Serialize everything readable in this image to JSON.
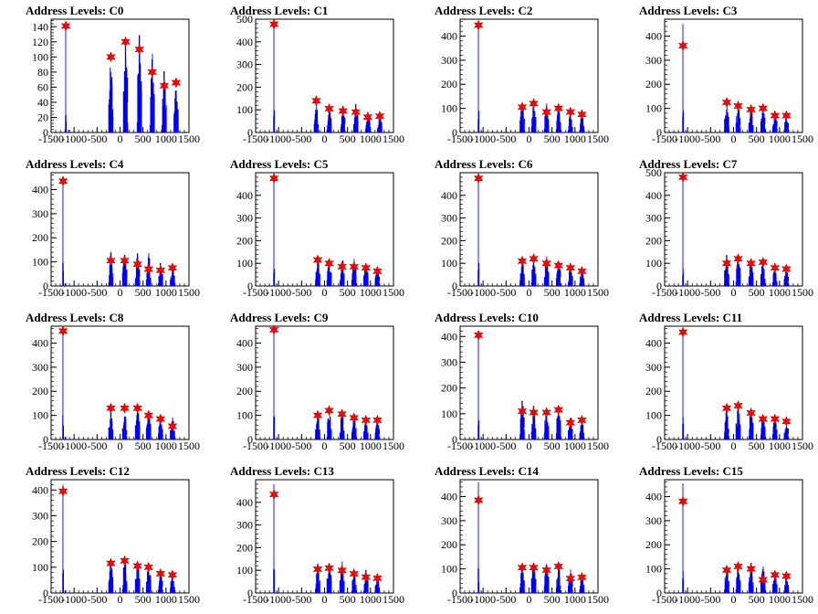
{
  "colors": {
    "background": "#ffffff",
    "histogram": "#0000ff",
    "peak_marker": "#ff0000",
    "axis": "#000000"
  },
  "chart_data": [
    {
      "type": "bar",
      "title": "Address Levels: C0",
      "xlim": [
        -1500,
        1500
      ],
      "ylim": [
        0,
        150
      ],
      "yticks": [
        0,
        20,
        40,
        60,
        80,
        100,
        120,
        140
      ],
      "xticks": [
        -1500,
        -1000,
        -500,
        0,
        500,
        1000,
        1500
      ],
      "peaks": [
        {
          "x": -1180,
          "height": 145,
          "marker": 141
        },
        {
          "x": -200,
          "height": 110,
          "marker": 100
        },
        {
          "x": 120,
          "height": 135,
          "marker": 120
        },
        {
          "x": 420,
          "height": 148,
          "marker": 110
        },
        {
          "x": 700,
          "height": 118,
          "marker": 80
        },
        {
          "x": 960,
          "height": 95,
          "marker": 62
        },
        {
          "x": 1220,
          "height": 70,
          "marker": 66
        }
      ]
    },
    {
      "type": "bar",
      "title": "Address Levels: C1",
      "xlim": [
        -1500,
        1500
      ],
      "ylim": [
        0,
        500
      ],
      "yticks": [
        0,
        100,
        200,
        300,
        400,
        500
      ],
      "xticks": [
        -1500,
        -1000,
        -500,
        0,
        500,
        1000,
        1500
      ],
      "peaks": [
        {
          "x": -1100,
          "height": 480,
          "marker": 478
        },
        {
          "x": -180,
          "height": 140,
          "marker": 140
        },
        {
          "x": 100,
          "height": 130,
          "marker": 105
        },
        {
          "x": 400,
          "height": 125,
          "marker": 95
        },
        {
          "x": 680,
          "height": 140,
          "marker": 90
        },
        {
          "x": 940,
          "height": 105,
          "marker": 68
        },
        {
          "x": 1200,
          "height": 85,
          "marker": 72
        }
      ]
    },
    {
      "type": "bar",
      "title": "Address Levels: C2",
      "xlim": [
        -1500,
        1500
      ],
      "ylim": [
        0,
        470
      ],
      "yticks": [
        0,
        100,
        200,
        300,
        400
      ],
      "xticks": [
        -1500,
        -1000,
        -500,
        0,
        500,
        1000,
        1500
      ],
      "peaks": [
        {
          "x": -1100,
          "height": 450,
          "marker": 445
        },
        {
          "x": -150,
          "height": 135,
          "marker": 105
        },
        {
          "x": 100,
          "height": 150,
          "marker": 120
        },
        {
          "x": 380,
          "height": 130,
          "marker": 85
        },
        {
          "x": 640,
          "height": 135,
          "marker": 100
        },
        {
          "x": 900,
          "height": 110,
          "marker": 85
        },
        {
          "x": 1150,
          "height": 90,
          "marker": 75
        }
      ]
    },
    {
      "type": "bar",
      "title": "Address Levels: C3",
      "xlim": [
        -1500,
        1500
      ],
      "ylim": [
        0,
        470
      ],
      "yticks": [
        0,
        100,
        200,
        300,
        400
      ],
      "xticks": [
        -1500,
        -1000,
        -500,
        0,
        500,
        1000,
        1500
      ],
      "peaks": [
        {
          "x": -1100,
          "height": 450,
          "marker": 360
        },
        {
          "x": -150,
          "height": 135,
          "marker": 125
        },
        {
          "x": 100,
          "height": 125,
          "marker": 110
        },
        {
          "x": 380,
          "height": 125,
          "marker": 95
        },
        {
          "x": 640,
          "height": 115,
          "marker": 100
        },
        {
          "x": 900,
          "height": 95,
          "marker": 70
        },
        {
          "x": 1150,
          "height": 80,
          "marker": 70
        }
      ]
    },
    {
      "type": "bar",
      "title": "Address Levels: C4",
      "xlim": [
        -1500,
        1500
      ],
      "ylim": [
        0,
        470
      ],
      "yticks": [
        0,
        100,
        200,
        300,
        400
      ],
      "xticks": [
        -1500,
        -1000,
        -500,
        0,
        500,
        1000,
        1500
      ],
      "peaks": [
        {
          "x": -1240,
          "height": 440,
          "marker": 435
        },
        {
          "x": -200,
          "height": 160,
          "marker": 105
        },
        {
          "x": 100,
          "height": 180,
          "marker": 105
        },
        {
          "x": 380,
          "height": 165,
          "marker": 90
        },
        {
          "x": 620,
          "height": 150,
          "marker": 70
        },
        {
          "x": 880,
          "height": 105,
          "marker": 65
        },
        {
          "x": 1140,
          "height": 85,
          "marker": 75
        }
      ]
    },
    {
      "type": "bar",
      "title": "Address Levels: C5",
      "xlim": [
        -1500,
        1500
      ],
      "ylim": [
        0,
        500
      ],
      "yticks": [
        0,
        100,
        200,
        300,
        400
      ],
      "xticks": [
        -1500,
        -1000,
        -500,
        0,
        500,
        1000,
        1500
      ],
      "peaks": [
        {
          "x": -1100,
          "height": 480,
          "marker": 475
        },
        {
          "x": -150,
          "height": 130,
          "marker": 115
        },
        {
          "x": 100,
          "height": 125,
          "marker": 100
        },
        {
          "x": 380,
          "height": 140,
          "marker": 85
        },
        {
          "x": 640,
          "height": 135,
          "marker": 85
        },
        {
          "x": 900,
          "height": 115,
          "marker": 80
        },
        {
          "x": 1150,
          "height": 90,
          "marker": 65
        }
      ]
    },
    {
      "type": "bar",
      "title": "Address Levels: C6",
      "xlim": [
        -1500,
        1500
      ],
      "ylim": [
        0,
        500
      ],
      "yticks": [
        0,
        100,
        200,
        300,
        400
      ],
      "xticks": [
        -1500,
        -1000,
        -500,
        0,
        500,
        1000,
        1500
      ],
      "peaks": [
        {
          "x": -1100,
          "height": 480,
          "marker": 475
        },
        {
          "x": -150,
          "height": 130,
          "marker": 110
        },
        {
          "x": 100,
          "height": 140,
          "marker": 120
        },
        {
          "x": 380,
          "height": 140,
          "marker": 100
        },
        {
          "x": 640,
          "height": 135,
          "marker": 90
        },
        {
          "x": 900,
          "height": 110,
          "marker": 80
        },
        {
          "x": 1150,
          "height": 85,
          "marker": 65
        }
      ]
    },
    {
      "type": "bar",
      "title": "Address Levels: C7",
      "xlim": [
        -1500,
        1500
      ],
      "ylim": [
        0,
        500
      ],
      "yticks": [
        0,
        100,
        200,
        300,
        400,
        500
      ],
      "xticks": [
        -1500,
        -1000,
        -500,
        0,
        500,
        1000,
        1500
      ],
      "peaks": [
        {
          "x": -1100,
          "height": 485,
          "marker": 480
        },
        {
          "x": -150,
          "height": 160,
          "marker": 100
        },
        {
          "x": 100,
          "height": 145,
          "marker": 120
        },
        {
          "x": 380,
          "height": 130,
          "marker": 100
        },
        {
          "x": 640,
          "height": 130,
          "marker": 105
        },
        {
          "x": 900,
          "height": 95,
          "marker": 80
        },
        {
          "x": 1150,
          "height": 90,
          "marker": 75
        }
      ]
    },
    {
      "type": "bar",
      "title": "Address Levels: C8",
      "xlim": [
        -1500,
        1500
      ],
      "ylim": [
        0,
        470
      ],
      "yticks": [
        0,
        100,
        200,
        300,
        400
      ],
      "xticks": [
        -1500,
        -1000,
        -500,
        0,
        500,
        1000,
        1500
      ],
      "peaks": [
        {
          "x": -1240,
          "height": 455,
          "marker": 450
        },
        {
          "x": -200,
          "height": 155,
          "marker": 130
        },
        {
          "x": 100,
          "height": 140,
          "marker": 130
        },
        {
          "x": 380,
          "height": 150,
          "marker": 130
        },
        {
          "x": 620,
          "height": 130,
          "marker": 100
        },
        {
          "x": 880,
          "height": 115,
          "marker": 85
        },
        {
          "x": 1140,
          "height": 100,
          "marker": 55
        }
      ]
    },
    {
      "type": "bar",
      "title": "Address Levels: C9",
      "xlim": [
        -1500,
        1500
      ],
      "ylim": [
        0,
        470
      ],
      "yticks": [
        0,
        100,
        200,
        300,
        400
      ],
      "xticks": [
        -1500,
        -1000,
        -500,
        0,
        500,
        1000,
        1500
      ],
      "peaks": [
        {
          "x": -1100,
          "height": 460,
          "marker": 455
        },
        {
          "x": -150,
          "height": 135,
          "marker": 100
        },
        {
          "x": 100,
          "height": 135,
          "marker": 120
        },
        {
          "x": 380,
          "height": 135,
          "marker": 105
        },
        {
          "x": 640,
          "height": 115,
          "marker": 90
        },
        {
          "x": 900,
          "height": 95,
          "marker": 80
        },
        {
          "x": 1150,
          "height": 90,
          "marker": 80
        }
      ]
    },
    {
      "type": "bar",
      "title": "Address Levels: C10",
      "xlim": [
        -1500,
        1500
      ],
      "ylim": [
        0,
        440
      ],
      "yticks": [
        0,
        100,
        200,
        300,
        400
      ],
      "xticks": [
        -1500,
        -1000,
        -500,
        0,
        500,
        1000,
        1500
      ],
      "peaks": [
        {
          "x": -1100,
          "height": 420,
          "marker": 405
        },
        {
          "x": -150,
          "height": 165,
          "marker": 110
        },
        {
          "x": 100,
          "height": 150,
          "marker": 105
        },
        {
          "x": 380,
          "height": 145,
          "marker": 105
        },
        {
          "x": 640,
          "height": 150,
          "marker": 115
        },
        {
          "x": 900,
          "height": 110,
          "marker": 65
        },
        {
          "x": 1150,
          "height": 90,
          "marker": 75
        }
      ]
    },
    {
      "type": "bar",
      "title": "Address Levels: C11",
      "xlim": [
        -1500,
        1500
      ],
      "ylim": [
        0,
        470
      ],
      "yticks": [
        0,
        100,
        200,
        300,
        400
      ],
      "xticks": [
        -1500,
        -1000,
        -500,
        0,
        500,
        1000,
        1500
      ],
      "peaks": [
        {
          "x": -1100,
          "height": 455,
          "marker": 445
        },
        {
          "x": -150,
          "height": 150,
          "marker": 130
        },
        {
          "x": 100,
          "height": 160,
          "marker": 140
        },
        {
          "x": 380,
          "height": 150,
          "marker": 110
        },
        {
          "x": 640,
          "height": 125,
          "marker": 85
        },
        {
          "x": 900,
          "height": 105,
          "marker": 85
        },
        {
          "x": 1150,
          "height": 85,
          "marker": 75
        }
      ]
    },
    {
      "type": "bar",
      "title": "Address Levels: C12",
      "xlim": [
        -1500,
        1500
      ],
      "ylim": [
        0,
        440
      ],
      "yticks": [
        0,
        100,
        200,
        300,
        400
      ],
      "xticks": [
        -1500,
        -1000,
        -500,
        0,
        500,
        1000,
        1500
      ],
      "peaks": [
        {
          "x": -1240,
          "height": 420,
          "marker": 395
        },
        {
          "x": -200,
          "height": 140,
          "marker": 115
        },
        {
          "x": 100,
          "height": 145,
          "marker": 125
        },
        {
          "x": 380,
          "height": 150,
          "marker": 105
        },
        {
          "x": 620,
          "height": 130,
          "marker": 100
        },
        {
          "x": 880,
          "height": 115,
          "marker": 75
        },
        {
          "x": 1140,
          "height": 90,
          "marker": 70
        }
      ]
    },
    {
      "type": "bar",
      "title": "Address Levels: C13",
      "xlim": [
        -1500,
        1500
      ],
      "ylim": [
        0,
        500
      ],
      "yticks": [
        0,
        100,
        200,
        300,
        400
      ],
      "xticks": [
        -1500,
        -1000,
        -500,
        0,
        500,
        1000,
        1500
      ],
      "peaks": [
        {
          "x": -1100,
          "height": 480,
          "marker": 435
        },
        {
          "x": -150,
          "height": 140,
          "marker": 105
        },
        {
          "x": 100,
          "height": 150,
          "marker": 110
        },
        {
          "x": 380,
          "height": 150,
          "marker": 100
        },
        {
          "x": 640,
          "height": 130,
          "marker": 85
        },
        {
          "x": 900,
          "height": 110,
          "marker": 70
        },
        {
          "x": 1150,
          "height": 90,
          "marker": 65
        }
      ]
    },
    {
      "type": "bar",
      "title": "Address Levels: C14",
      "xlim": [
        -1500,
        1500
      ],
      "ylim": [
        0,
        470
      ],
      "yticks": [
        0,
        100,
        200,
        300,
        400
      ],
      "xticks": [
        -1500,
        -1000,
        -500,
        0,
        500,
        1000,
        1500
      ],
      "peaks": [
        {
          "x": -1100,
          "height": 460,
          "marker": 385
        },
        {
          "x": -150,
          "height": 135,
          "marker": 105
        },
        {
          "x": 100,
          "height": 150,
          "marker": 105
        },
        {
          "x": 380,
          "height": 140,
          "marker": 95
        },
        {
          "x": 640,
          "height": 125,
          "marker": 110
        },
        {
          "x": 900,
          "height": 110,
          "marker": 60
        },
        {
          "x": 1150,
          "height": 90,
          "marker": 65
        }
      ]
    },
    {
      "type": "bar",
      "title": "Address Levels: C15",
      "xlim": [
        -1500,
        1500
      ],
      "ylim": [
        0,
        470
      ],
      "yticks": [
        0,
        100,
        200,
        300,
        400
      ],
      "xticks": [
        -1500,
        -1000,
        -500,
        0,
        500,
        1000,
        1500
      ],
      "peaks": [
        {
          "x": -1100,
          "height": 455,
          "marker": 380
        },
        {
          "x": -150,
          "height": 130,
          "marker": 95
        },
        {
          "x": 100,
          "height": 130,
          "marker": 110
        },
        {
          "x": 380,
          "height": 135,
          "marker": 100
        },
        {
          "x": 640,
          "height": 120,
          "marker": 55
        },
        {
          "x": 900,
          "height": 105,
          "marker": 75
        },
        {
          "x": 1150,
          "height": 85,
          "marker": 70
        }
      ]
    }
  ]
}
